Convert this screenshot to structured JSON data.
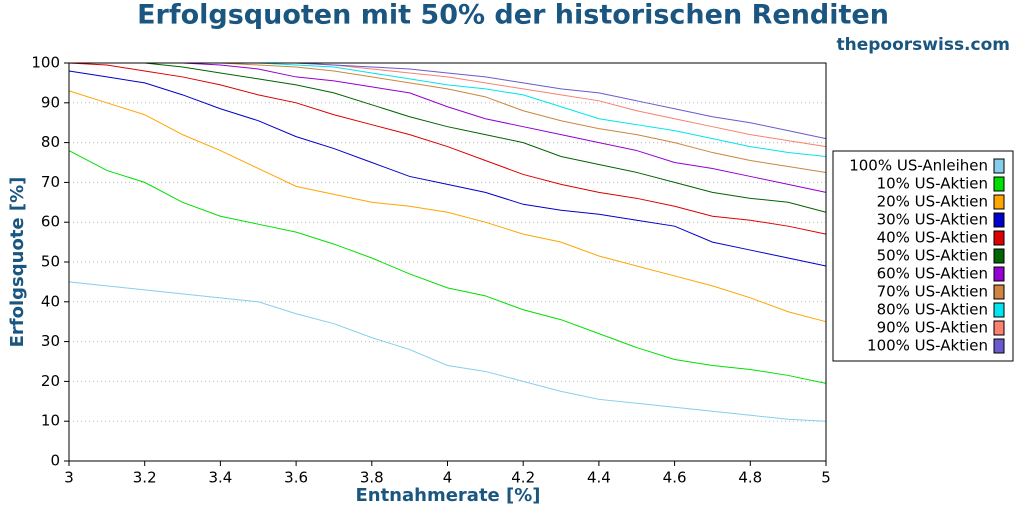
{
  "chart_data": {
    "type": "line",
    "title": "Erfolgsquoten mit 50% der historischen Renditen",
    "source": "thepoorswiss.com",
    "x_label": "Entnahmerate [%]",
    "y_label": "Erfolgsquote [%]",
    "x": [
      3,
      3.1,
      3.2,
      3.3,
      3.4,
      3.5,
      3.6,
      3.7,
      3.8,
      3.9,
      4,
      4.1,
      4.2,
      4.3,
      4.4,
      4.5,
      4.6,
      4.7,
      4.8,
      4.9,
      5
    ],
    "xlim": [
      3,
      5
    ],
    "xticks": [
      3,
      3.2,
      3.4,
      3.6,
      3.8,
      4,
      4.2,
      4.4,
      4.6,
      4.8,
      5
    ],
    "ylim": [
      0,
      100
    ],
    "yticks": [
      0,
      10,
      20,
      30,
      40,
      50,
      60,
      70,
      80,
      90,
      100
    ],
    "grid": true,
    "legend": "right",
    "series": [
      {
        "name": "100% US-Anleihen",
        "color": "#87ceeb",
        "values": [
          45,
          44,
          43,
          42,
          41,
          40,
          37,
          34.5,
          31,
          28,
          24,
          22.5,
          20,
          17.5,
          15.5,
          14.5,
          13.5,
          12.5,
          11.5,
          10.5,
          10
        ]
      },
      {
        "name": "10% US-Aktien",
        "color": "#00e000",
        "values": [
          78,
          73,
          70,
          65,
          61.5,
          59.5,
          57.5,
          54.5,
          51,
          47,
          43.5,
          41.5,
          38,
          35.5,
          32,
          28.5,
          25.5,
          24,
          23,
          21.5,
          19.5
        ]
      },
      {
        "name": "20% US-Aktien",
        "color": "#ffa500",
        "values": [
          93,
          90,
          87,
          82,
          78,
          73.5,
          69,
          67,
          65,
          64,
          62.5,
          60,
          57,
          55,
          51.5,
          49,
          46.5,
          44,
          41,
          37.5,
          35
        ]
      },
      {
        "name": "30% US-Aktien",
        "color": "#0000cc",
        "values": [
          98,
          96.5,
          95,
          92,
          88.5,
          85.5,
          81.5,
          78.5,
          75,
          71.5,
          69.5,
          67.5,
          64.5,
          63,
          62,
          60.5,
          59,
          55,
          53,
          51,
          49
        ]
      },
      {
        "name": "40% US-Aktien",
        "color": "#dd0000",
        "values": [
          100,
          99.5,
          98,
          96.5,
          94.5,
          92,
          90,
          87,
          84.5,
          82,
          79,
          75.5,
          72,
          69.5,
          67.5,
          66,
          64,
          61.5,
          60.5,
          59,
          57
        ]
      },
      {
        "name": "50% US-Aktien",
        "color": "#006400",
        "values": [
          100,
          100,
          100,
          99,
          97.5,
          96,
          94.5,
          92.5,
          89.5,
          86.5,
          84,
          82,
          80,
          76.5,
          74.5,
          72.5,
          70,
          67.5,
          66,
          65,
          62.5
        ]
      },
      {
        "name": "60% US-Aktien",
        "color": "#9400d3",
        "values": [
          100,
          100,
          100,
          100,
          99.5,
          98.5,
          96.5,
          95.5,
          94,
          92.5,
          89,
          86,
          84,
          82,
          80,
          78,
          75,
          73.5,
          71.5,
          69.5,
          67.5
        ]
      },
      {
        "name": "70% US-Aktien",
        "color": "#cd853f",
        "values": [
          100,
          100,
          100,
          100,
          100,
          99.5,
          99,
          98,
          96.5,
          95,
          93.5,
          91.5,
          88,
          85.5,
          83.5,
          82,
          80,
          77.5,
          75.5,
          74,
          72.5
        ]
      },
      {
        "name": "80% US-Aktien",
        "color": "#00e5ee",
        "values": [
          100,
          100,
          100,
          100,
          100,
          100,
          99.5,
          99,
          97.5,
          96,
          94.5,
          93.5,
          92,
          89,
          86,
          84.5,
          83,
          81,
          79,
          77.5,
          76.5
        ]
      },
      {
        "name": "90% US-Aktien",
        "color": "#fa8072",
        "values": [
          100,
          100,
          100,
          100,
          100,
          100,
          100,
          99.5,
          98.5,
          97.5,
          96.5,
          95,
          93.5,
          92,
          90.5,
          88,
          86,
          84,
          82,
          80.5,
          79
        ]
      },
      {
        "name": "100% US-Aktien",
        "color": "#6a5acd",
        "values": [
          100,
          100,
          100,
          100,
          100,
          100,
          100,
          99.5,
          99,
          98.5,
          97.5,
          96.5,
          95,
          93.5,
          92.5,
          90.5,
          88.5,
          86.5,
          85,
          83,
          81
        ]
      }
    ]
  }
}
